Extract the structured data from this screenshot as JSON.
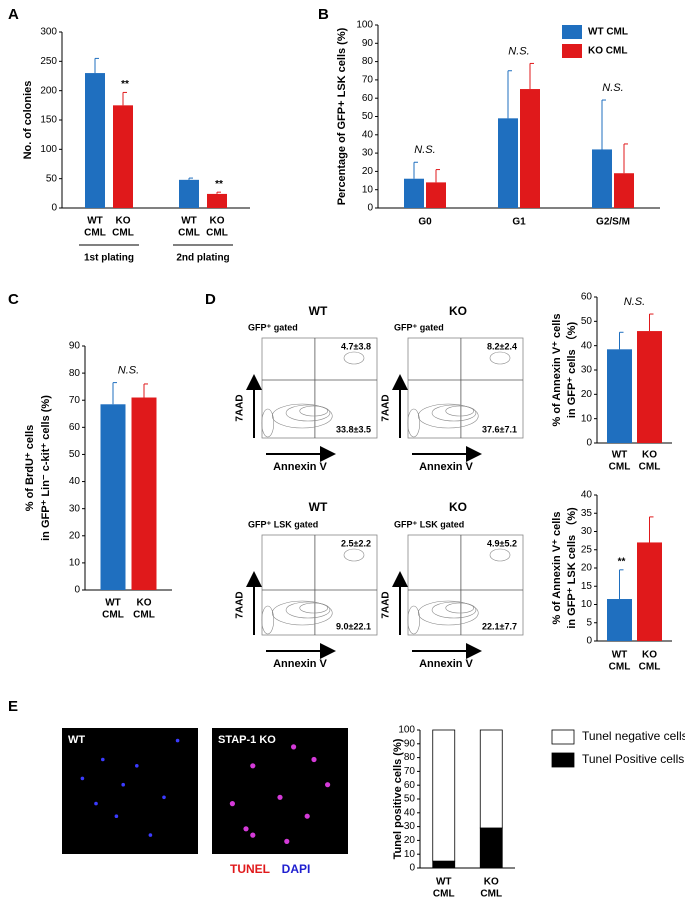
{
  "panel_letters": [
    "A",
    "B",
    "C",
    "D",
    "E"
  ],
  "chart_data": [
    {
      "type": "bar",
      "ylabel": "No. of colonies",
      "ylim": [
        0,
        300
      ],
      "yticks": [
        0,
        50,
        100,
        150,
        200,
        250,
        300
      ],
      "categories": [
        "1st plating",
        "2nd plating"
      ],
      "bar_labels": [
        [
          "WT",
          "CML"
        ],
        [
          "KO",
          "CML"
        ]
      ],
      "series": [
        {
          "color": "#1f6fbf",
          "values": [
            230,
            48
          ],
          "errors": [
            25,
            3
          ]
        },
        {
          "color": "#e0191b",
          "values": [
            175,
            24
          ],
          "errors": [
            22,
            3
          ],
          "annotations": [
            "**",
            "**"
          ]
        }
      ]
    },
    {
      "type": "bar",
      "ylabel": "Percentage of GFP+ LSK cells (%)",
      "ylim": [
        0,
        100
      ],
      "yticks": [
        0,
        10,
        20,
        30,
        40,
        50,
        60,
        70,
        80,
        90,
        100
      ],
      "categories": [
        "G0",
        "G1",
        "G2/S/M"
      ],
      "group_annotations": [
        "N.S.",
        "N.S.",
        "N.S."
      ],
      "legend": "upper right",
      "series": [
        {
          "name": "WT CML",
          "color": "#1f6fbf",
          "values": [
            16,
            49,
            32
          ],
          "errors": [
            9,
            26,
            27
          ]
        },
        {
          "name": "KO CML",
          "color": "#e0191b",
          "values": [
            14,
            65,
            19
          ],
          "errors": [
            7,
            14,
            16
          ]
        }
      ]
    },
    {
      "type": "bar",
      "ylabel": [
        "% of BrdU⁺ cells",
        "in GFP⁺ Lin⁻ c-kit⁺ cells (%)"
      ],
      "ylim": [
        0,
        90
      ],
      "yticks": [
        0,
        10,
        20,
        30,
        40,
        50,
        60,
        70,
        80,
        90
      ],
      "group_annotations": [
        "N.S."
      ],
      "bar_labels": [
        [
          "WT",
          "CML"
        ],
        [
          "KO",
          "CML"
        ]
      ],
      "series": [
        {
          "color": "#1f6fbf",
          "values": [
            68.5
          ],
          "errors": [
            8
          ]
        },
        {
          "color": "#e0191b",
          "values": [
            71
          ],
          "errors": [
            5
          ]
        }
      ]
    },
    {
      "type": "bar",
      "ylabel": [
        "% of Annexin V⁺ cells",
        "in GFP⁺ cells （%)"
      ],
      "ylim": [
        0,
        60
      ],
      "yticks": [
        0,
        10,
        20,
        30,
        40,
        50,
        60
      ],
      "group_annotations": [
        "N.S."
      ],
      "bar_labels": [
        [
          "WT",
          "CML"
        ],
        [
          "KO",
          "CML"
        ]
      ],
      "series": [
        {
          "color": "#1f6fbf",
          "values": [
            38.5
          ],
          "errors": [
            7
          ]
        },
        {
          "color": "#e0191b",
          "values": [
            46
          ],
          "errors": [
            7
          ]
        }
      ]
    },
    {
      "type": "bar",
      "ylabel": [
        "% of Annexin V⁺ cells",
        "in GFP⁺ LSK cells （%)"
      ],
      "ylim": [
        0,
        40
      ],
      "yticks": [
        0,
        5,
        10,
        15,
        20,
        25,
        30,
        35,
        40
      ],
      "bar_labels": [
        [
          "WT",
          "CML"
        ],
        [
          "KO",
          "CML"
        ]
      ],
      "series": [
        {
          "color": "#1f6fbf",
          "values": [
            11.5
          ],
          "errors": [
            8
          ],
          "annotations": [
            "**"
          ]
        },
        {
          "color": "#e0191b",
          "values": [
            27
          ],
          "errors": [
            7
          ]
        }
      ]
    },
    {
      "type": "stacked_bar",
      "ylabel": "Tunel positive cells (%)",
      "ylim": [
        0,
        100
      ],
      "yticks": [
        0,
        10,
        20,
        30,
        40,
        50,
        60,
        70,
        80,
        90,
        100
      ],
      "categories": [
        [
          "WT",
          "CML"
        ],
        [
          "KO",
          "CML"
        ]
      ],
      "legend": "right",
      "series": [
        {
          "name": "Tunel Positive cells",
          "color": "#000000",
          "values": [
            5,
            29
          ]
        },
        {
          "name": "Tunel negative cells",
          "color": "#ffffff",
          "values": [
            95,
            71
          ]
        }
      ]
    }
  ],
  "flow_plots": [
    {
      "title": "WT",
      "gate": "GFP⁺ gated",
      "quadrants": [
        "4.7±3.8",
        "33.8±3.5"
      ],
      "y_axis": "7AAD",
      "x_axis": "Annexin V"
    },
    {
      "title": "KO",
      "gate": "GFP⁺ gated",
      "quadrants": [
        "8.2±2.4",
        "37.6±7.1"
      ],
      "y_axis": "7AAD",
      "x_axis": "Annexin V"
    },
    {
      "title": "WT",
      "gate": "GFP⁺ LSK gated",
      "quadrants": [
        "2.5±2.2",
        "9.0±22.1"
      ],
      "y_axis": "7AAD",
      "x_axis": "Annexin V"
    },
    {
      "title": "KO",
      "gate": "GFP⁺ LSK gated",
      "quadrants": [
        "4.9±5.2",
        "22.1±7.7"
      ],
      "y_axis": "7AAD",
      "x_axis": "Annexin V"
    }
  ],
  "micrographs": {
    "panels": [
      {
        "label": "WT"
      },
      {
        "label": "STAP-1 KO"
      }
    ],
    "stains": [
      "TUNEL",
      "DAPI"
    ]
  }
}
